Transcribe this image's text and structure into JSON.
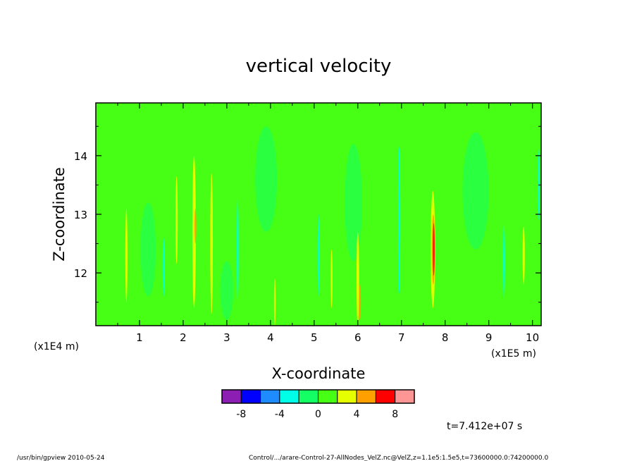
{
  "chart_data": {
    "type": "heatmap",
    "title": "vertical velocity",
    "xlabel": "X-coordinate",
    "ylabel": "Z-coordinate",
    "x_unit": "(x1E5 m)",
    "y_unit": "(x1E4 m)",
    "xlim": [
      0,
      10.2
    ],
    "ylim": [
      11.1,
      14.9
    ],
    "x_ticks": [
      "1",
      "2",
      "3",
      "4",
      "5",
      "6",
      "7",
      "8",
      "9",
      "10"
    ],
    "y_ticks": [
      "12",
      "13",
      "14"
    ],
    "colorbar": {
      "colors": [
        "#8c1eb4",
        "#0000ff",
        "#1e8cff",
        "#00ffe6",
        "#14ff64",
        "#46ff14",
        "#e6ff00",
        "#ffa000",
        "#ff0000",
        "#ff9696"
      ],
      "tick_labels": [
        "-8",
        "-4",
        "0",
        "4",
        "8"
      ],
      "tick_values": [
        -8,
        -4,
        0,
        4,
        8
      ],
      "bins": [
        [
          -10,
          -8
        ],
        [
          -8,
          -6
        ],
        [
          -6,
          -4
        ],
        [
          -4,
          -2
        ],
        [
          -2,
          0
        ],
        [
          0,
          2
        ],
        [
          2,
          4
        ],
        [
          4,
          6
        ],
        [
          6,
          8
        ],
        [
          8,
          10
        ]
      ]
    },
    "background_bin": 5,
    "features": [
      {
        "x": 2.25,
        "z": 12.7,
        "width": 0.08,
        "height": 2.6,
        "bin": 6
      },
      {
        "x": 2.28,
        "z": 12.8,
        "width": 0.04,
        "height": 0.6,
        "bin": 7
      },
      {
        "x": 2.65,
        "z": 12.5,
        "width": 0.06,
        "height": 2.4,
        "bin": 6
      },
      {
        "x": 0.7,
        "z": 12.3,
        "width": 0.05,
        "height": 1.6,
        "bin": 6
      },
      {
        "x": 1.85,
        "z": 12.9,
        "width": 0.05,
        "height": 1.5,
        "bin": 6
      },
      {
        "x": 6.0,
        "z": 11.9,
        "width": 0.06,
        "height": 1.6,
        "bin": 6
      },
      {
        "x": 6.05,
        "z": 11.5,
        "width": 0.04,
        "height": 0.6,
        "bin": 7
      },
      {
        "x": 7.72,
        "z": 12.4,
        "width": 0.1,
        "height": 2.0,
        "bin": 6
      },
      {
        "x": 7.73,
        "z": 12.4,
        "width": 0.07,
        "height": 1.2,
        "bin": 7
      },
      {
        "x": 7.74,
        "z": 12.4,
        "width": 0.04,
        "height": 0.9,
        "bin": 8
      },
      {
        "x": 5.4,
        "z": 11.9,
        "width": 0.04,
        "height": 1.0,
        "bin": 6
      },
      {
        "x": 4.1,
        "z": 11.5,
        "width": 0.04,
        "height": 0.8,
        "bin": 6
      },
      {
        "x": 9.8,
        "z": 12.3,
        "width": 0.05,
        "height": 1.0,
        "bin": 6
      },
      {
        "x": 6.95,
        "z": 12.9,
        "width": 0.05,
        "height": 2.5,
        "bin": 3
      },
      {
        "x": 3.25,
        "z": 12.4,
        "width": 0.04,
        "height": 1.8,
        "bin": 3
      },
      {
        "x": 5.1,
        "z": 12.3,
        "width": 0.04,
        "height": 1.4,
        "bin": 3
      },
      {
        "x": 9.35,
        "z": 12.2,
        "width": 0.04,
        "height": 1.3,
        "bin": 3
      },
      {
        "x": 1.55,
        "z": 12.1,
        "width": 0.04,
        "height": 1.0,
        "bin": 3
      },
      {
        "x": 10.15,
        "z": 13.5,
        "width": 0.04,
        "height": 1.2,
        "bin": 3
      },
      {
        "x": 3.9,
        "z": 13.6,
        "width": 0.5,
        "height": 1.8,
        "bin": 4
      },
      {
        "x": 5.9,
        "z": 13.2,
        "width": 0.4,
        "height": 2.0,
        "bin": 4
      },
      {
        "x": 8.7,
        "z": 13.4,
        "width": 0.6,
        "height": 2.0,
        "bin": 4
      },
      {
        "x": 1.2,
        "z": 12.4,
        "width": 0.35,
        "height": 1.6,
        "bin": 4
      },
      {
        "x": 3.0,
        "z": 11.7,
        "width": 0.3,
        "height": 1.0,
        "bin": 4
      }
    ]
  },
  "time_label": "t=7.412e+07 s",
  "footer_left": "/usr/bin/gpview   2010-05-24",
  "footer_right": "Control/.../arare-Control-27-AllNodes_VelZ.nc@VelZ,z=1.1e5:1.5e5,t=73600000.0:74200000.0"
}
